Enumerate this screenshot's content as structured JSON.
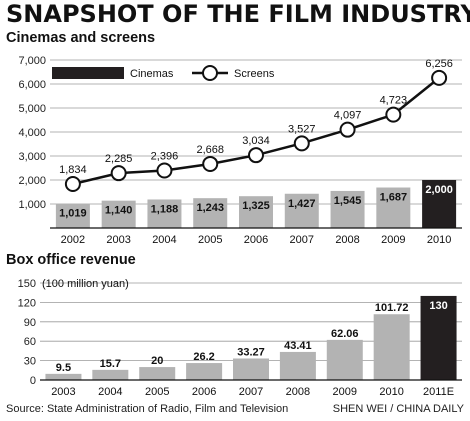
{
  "title": "SNAPSHOT OF THE FILM INDUSTRY",
  "source": "Source: State Administration of Radio, Film and Television",
  "credit": "SHEN WEI / CHINA DAILY",
  "colors": {
    "bar": "#b3b3b3",
    "highlight": "#231f20",
    "line": "#111111",
    "point_fill": "#ffffff",
    "grid": "#9a9a9a"
  },
  "chart_data": [
    {
      "type": "bar",
      "title": "Cinemas and screens",
      "categories": [
        "2002",
        "2003",
        "2004",
        "2005",
        "2006",
        "2007",
        "2008",
        "2009",
        "2010"
      ],
      "series": [
        {
          "name": "Cinemas",
          "type": "bar",
          "values": [
            1019,
            1140,
            1188,
            1243,
            1325,
            1427,
            1545,
            1687,
            2000
          ],
          "labels": [
            "1,019",
            "1,140",
            "1,188",
            "1,243",
            "1,325",
            "1,427",
            "1,545",
            "1,687",
            "2,000"
          ]
        },
        {
          "name": "Screens",
          "type": "line",
          "values": [
            1834,
            2285,
            2396,
            2668,
            3034,
            3527,
            4097,
            4723,
            6256
          ],
          "labels": [
            "1,834",
            "2,285",
            "2,396",
            "2,668",
            "3,034",
            "3,527",
            "4,097",
            "4,723",
            "6,256"
          ]
        }
      ],
      "ylim": [
        0,
        7000
      ],
      "yticks": [
        "1,000",
        "2,000",
        "3,000",
        "4,000",
        "5,000",
        "6,000",
        "7,000"
      ],
      "grid": true,
      "legend": "top-left"
    },
    {
      "type": "bar",
      "title": "Box office revenue",
      "ylabel": "(100 million yuan)",
      "categories": [
        "2003",
        "2004",
        "2005",
        "2006",
        "2007",
        "2008",
        "2009",
        "2010",
        "2011E"
      ],
      "series": [
        {
          "values": [
            9.5,
            15.7,
            20,
            26.2,
            33.27,
            43.41,
            62.06,
            101.72,
            130
          ],
          "labels": [
            "9.5",
            "15.7",
            "20",
            "26.2",
            "33.27",
            "43.41",
            "62.06",
            "101.72",
            "130"
          ]
        }
      ],
      "ylim": [
        0,
        150
      ],
      "yticks": [
        "0",
        "30",
        "60",
        "90",
        "120",
        "150"
      ],
      "grid": true
    }
  ]
}
